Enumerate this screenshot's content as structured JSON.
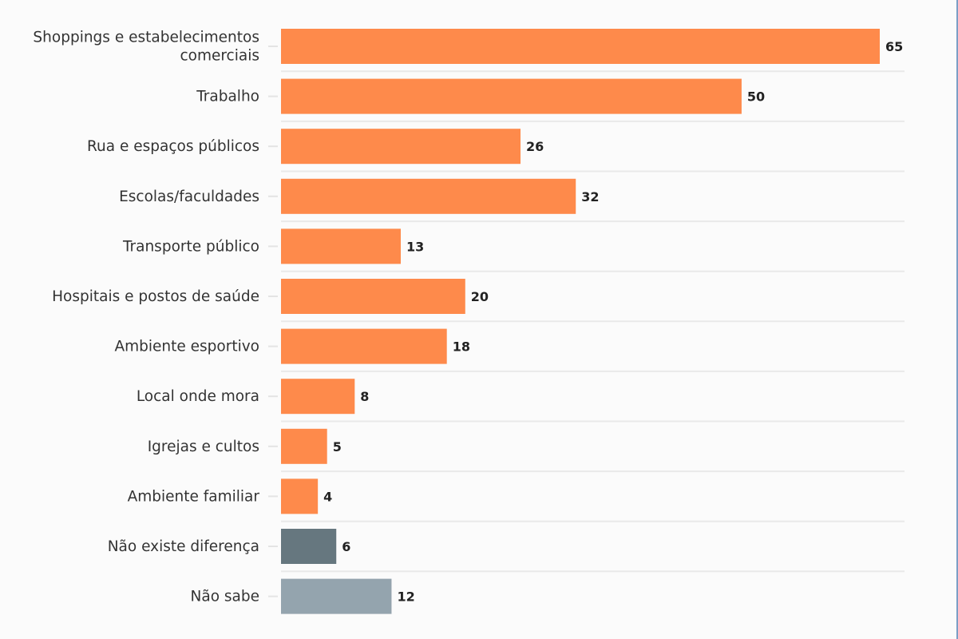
{
  "chart_data": {
    "type": "bar",
    "orientation": "horizontal",
    "title": "",
    "xlabel": "",
    "ylabel": "",
    "xlim": [
      0,
      65
    ],
    "grid": true,
    "legend": "none",
    "categories": [
      [
        "Shoppings e estabelecimentos",
        "comerciais"
      ],
      [
        "Trabalho"
      ],
      [
        "Rua e espaços públicos"
      ],
      [
        "Escolas/faculdades"
      ],
      [
        "Transporte público"
      ],
      [
        "Hospitais e postos de saúde"
      ],
      [
        "Ambiente esportivo"
      ],
      [
        "Local onde mora"
      ],
      [
        "Igrejas e cultos"
      ],
      [
        "Ambiente familiar"
      ],
      [
        "Não existe diferença"
      ],
      [
        "Não sabe"
      ]
    ],
    "values": [
      65,
      50,
      26,
      32,
      13,
      20,
      18,
      8,
      5,
      4,
      6,
      12
    ],
    "value_labels": [
      "65",
      "50",
      "26",
      "32",
      "13",
      "20",
      "18",
      "8",
      "5",
      "4",
      "6",
      "12"
    ],
    "bar_colors": [
      "#fe8a4b",
      "#fe8a4b",
      "#fe8a4b",
      "#fe8a4b",
      "#fe8a4b",
      "#fe8a4b",
      "#fe8a4b",
      "#fe8a4b",
      "#fe8a4b",
      "#fe8a4b",
      "#66777f",
      "#94a4ae"
    ]
  }
}
